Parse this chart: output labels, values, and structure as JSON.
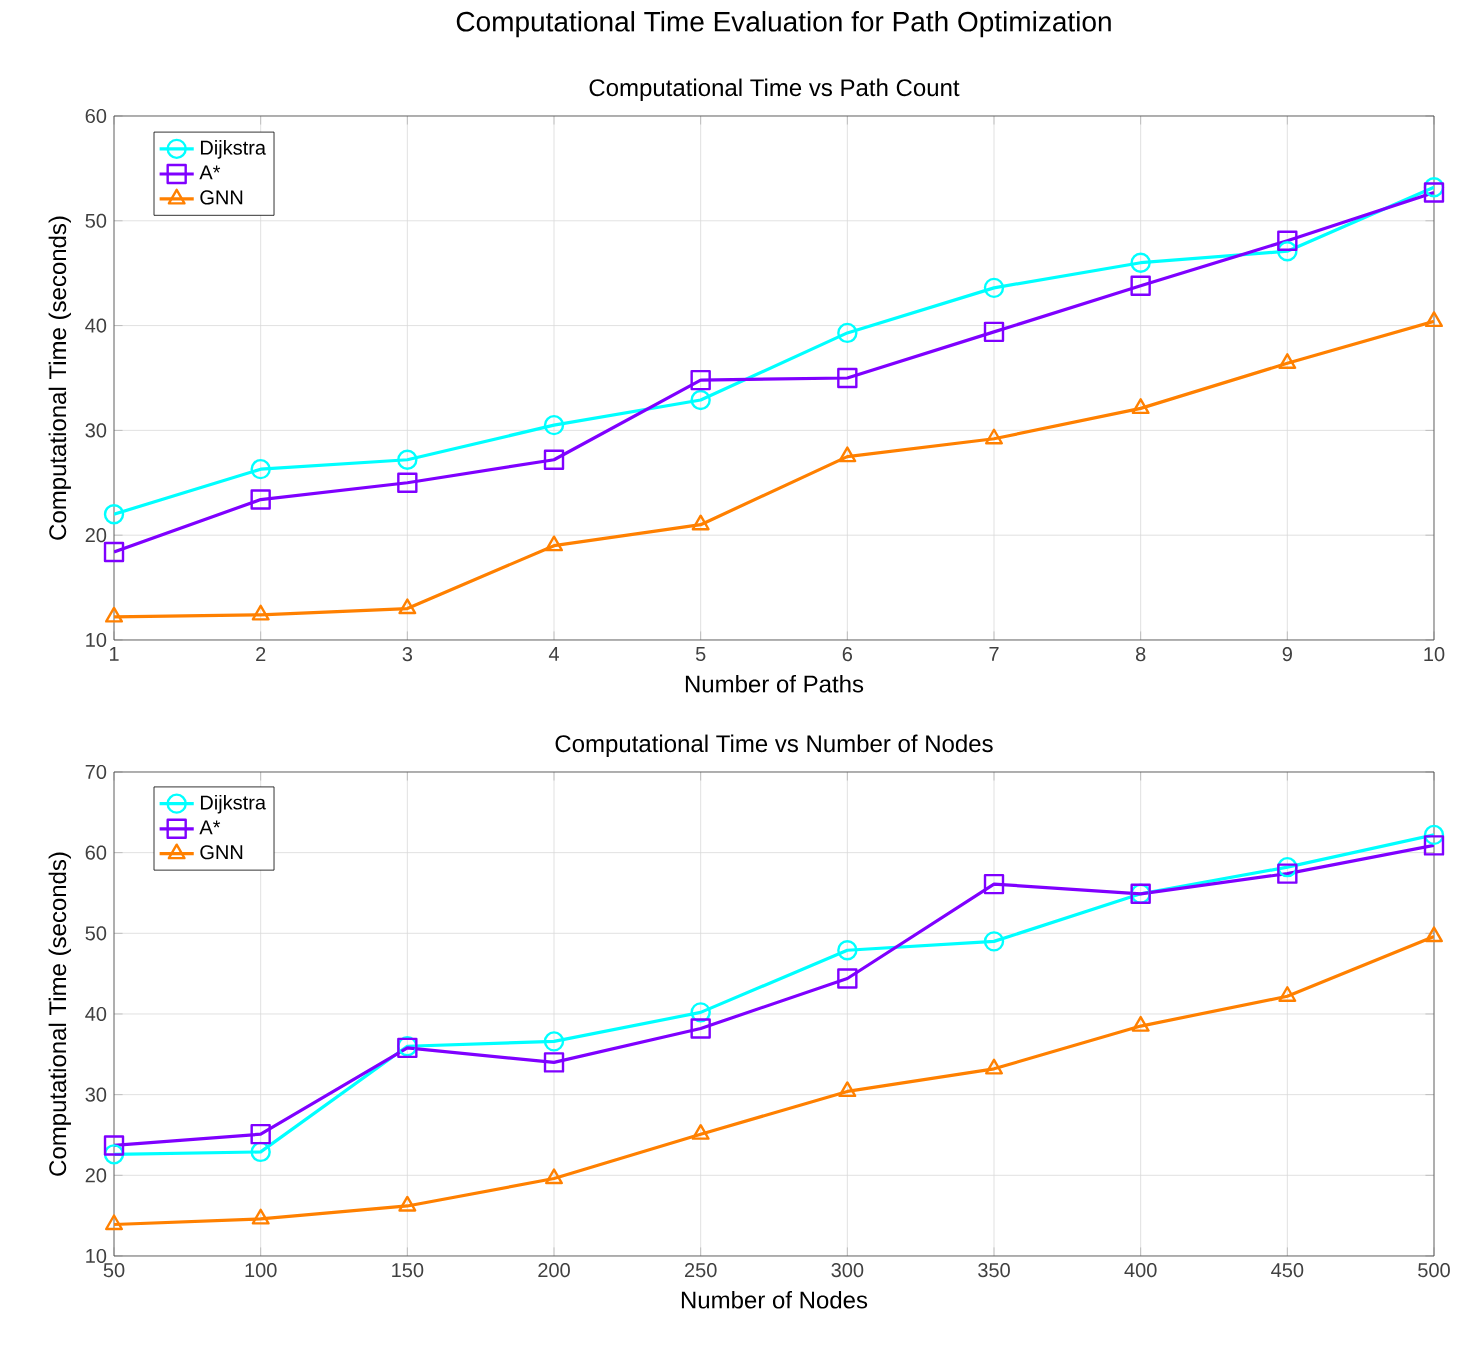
{
  "chart_data": [
    {
      "type": "line",
      "title": "Computational Time Evaluation for Path Optimization",
      "subtitle": "Computational Time vs Path Count",
      "xlabel": "Number of Paths",
      "ylabel": "Computational Time (seconds)",
      "x": [
        1,
        2,
        3,
        4,
        5,
        6,
        7,
        8,
        9,
        10
      ],
      "xlim": [
        1,
        10
      ],
      "xticks": [
        1,
        2,
        3,
        4,
        5,
        6,
        7,
        8,
        9,
        10
      ],
      "ylim": [
        10,
        60
      ],
      "yticks": [
        10,
        20,
        30,
        40,
        50,
        60
      ],
      "grid": true,
      "legend": "top left",
      "line_style": "solid",
      "series": [
        {
          "name": "Dijkstra",
          "color": "#00ffff",
          "marker": "circle",
          "values": [
            22.0,
            26.3,
            27.2,
            30.5,
            32.9,
            39.3,
            43.6,
            46.0,
            47.1,
            53.2
          ]
        },
        {
          "name": "A*",
          "color": "#7f00ff",
          "marker": "square",
          "values": [
            18.4,
            23.4,
            25.0,
            27.2,
            34.8,
            35.0,
            39.4,
            43.8,
            48.1,
            52.7
          ]
        },
        {
          "name": "GNN",
          "color": "#ff8000",
          "marker": "triangle",
          "values": [
            12.2,
            12.4,
            13.0,
            19.0,
            21.0,
            27.5,
            29.2,
            32.1,
            36.4,
            40.4
          ]
        }
      ]
    },
    {
      "type": "line",
      "title": "Computational Time vs Number of Nodes",
      "xlabel": "Number of Nodes",
      "ylabel": "Computational Time (seconds)",
      "x": [
        50,
        100,
        150,
        200,
        250,
        300,
        350,
        400,
        450,
        500
      ],
      "xlim": [
        50,
        500
      ],
      "xticks": [
        50,
        100,
        150,
        200,
        250,
        300,
        350,
        400,
        450,
        500
      ],
      "ylim": [
        10,
        70
      ],
      "yticks": [
        10,
        20,
        30,
        40,
        50,
        60,
        70
      ],
      "grid": true,
      "legend": "top left",
      "line_style": "solid",
      "series": [
        {
          "name": "Dijkstra",
          "color": "#00ffff",
          "marker": "circle",
          "values": [
            22.6,
            22.9,
            36.0,
            36.6,
            40.2,
            47.9,
            49.0,
            54.9,
            58.2,
            62.2
          ]
        },
        {
          "name": "A*",
          "color": "#7f00ff",
          "marker": "square",
          "values": [
            23.7,
            25.1,
            35.8,
            34.0,
            38.2,
            44.4,
            56.1,
            54.9,
            57.4,
            60.9
          ]
        },
        {
          "name": "GNN",
          "color": "#ff8000",
          "marker": "triangle",
          "values": [
            13.9,
            14.6,
            16.2,
            19.6,
            25.1,
            30.4,
            33.2,
            38.5,
            42.2,
            49.6
          ]
        }
      ]
    }
  ]
}
